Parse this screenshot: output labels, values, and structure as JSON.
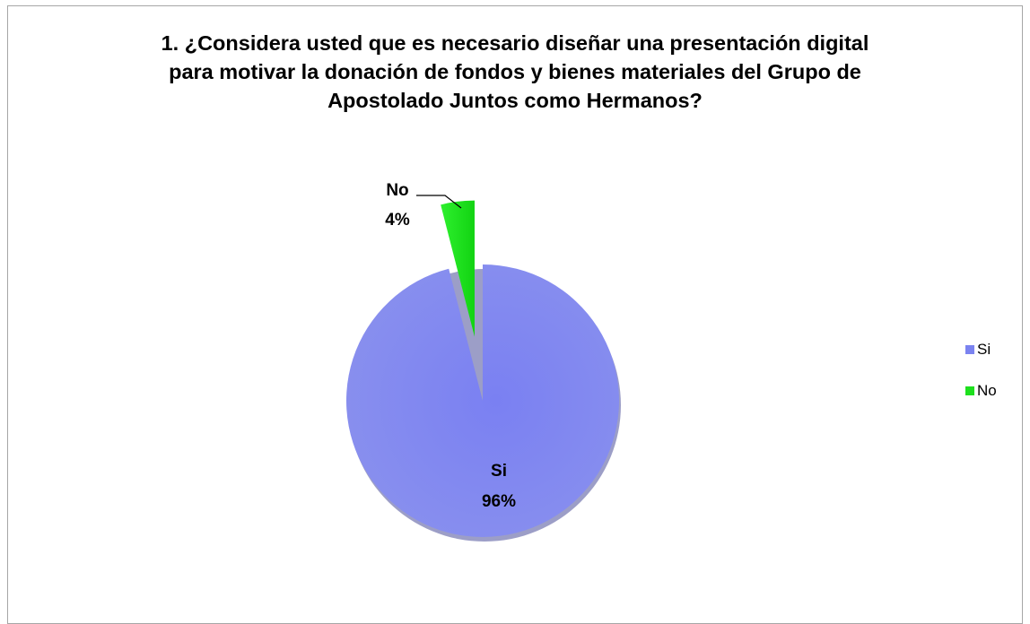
{
  "chart_data": {
    "type": "pie",
    "title_lines": [
      "1. ¿Considera usted que es necesario diseñar una presentación digital",
      "para motivar la donación de fondos y bienes materiales del Grupo de",
      "Apostolado Juntos como Hermanos?"
    ],
    "categories": [
      "Si",
      "No"
    ],
    "values": [
      96,
      4
    ],
    "percent_labels": [
      "96%",
      "4%"
    ],
    "colors": [
      "#7b83f0",
      "#1ee01e"
    ],
    "legend_position": "right",
    "exploded": [
      "No"
    ]
  }
}
